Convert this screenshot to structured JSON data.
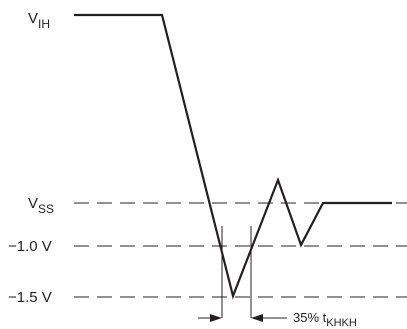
{
  "labels": {
    "vih": {
      "main": "V",
      "sub": "IH"
    },
    "vss": {
      "main": "V",
      "sub": "SS"
    },
    "minus_1_0": "−1.0 V",
    "minus_1_5": "−1.5 V"
  },
  "annotation": {
    "percent": "35% t",
    "sub": "KHKH"
  }
}
